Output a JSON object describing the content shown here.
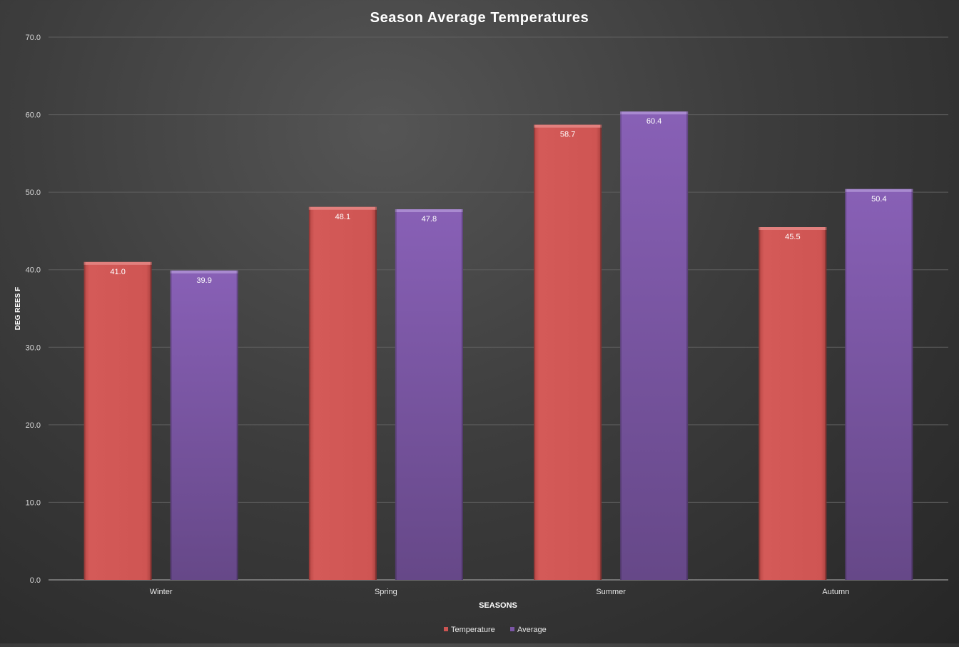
{
  "chart_data": {
    "type": "bar",
    "title": "Season Average Temperatures",
    "xlabel": "SEASONS",
    "ylabel": "DEG REES F",
    "categories": [
      "Winter",
      "Spring",
      "Summer",
      "Autumn"
    ],
    "series": [
      {
        "name": "Temperature",
        "values": [
          41.0,
          48.1,
          58.7,
          45.5
        ],
        "color": "#cc5452"
      },
      {
        "name": "Average",
        "values": [
          39.9,
          47.8,
          60.4,
          50.4
        ],
        "color": "#7b56a6"
      }
    ],
    "ylim": [
      0,
      70
    ],
    "yticks": [
      "0.0",
      "10.0",
      "20.0",
      "30.0",
      "40.0",
      "50.0",
      "60.0",
      "70.0"
    ],
    "data_labels": [
      [
        "41.0",
        "48.1",
        "58.7",
        "45.5"
      ],
      [
        "39.9",
        "47.8",
        "60.4",
        "50.4"
      ]
    ],
    "grid": true,
    "legend_position": "bottom-center"
  }
}
